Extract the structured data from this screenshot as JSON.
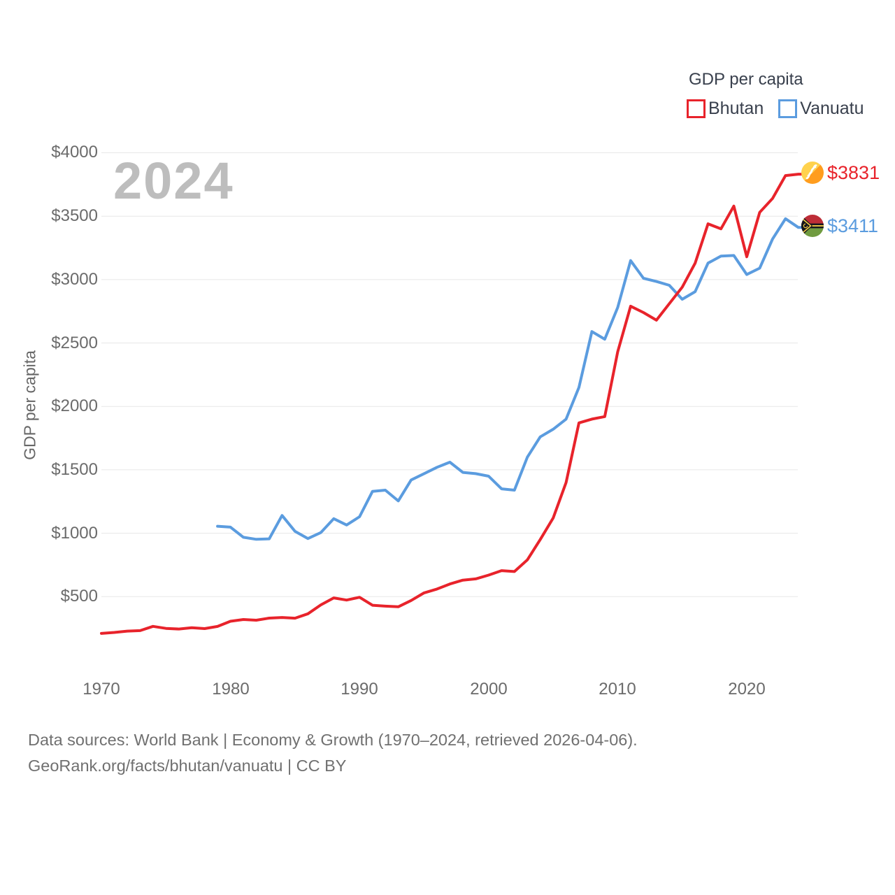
{
  "watermark": {
    "text": "2024"
  },
  "legend": {
    "title": "GDP per capita",
    "items": [
      {
        "label": "Bhutan",
        "color": "#e8232b"
      },
      {
        "label": "Vanuatu",
        "color": "#5b9cdf"
      }
    ]
  },
  "axes": {
    "y_title": "GDP per capita",
    "y_ticks": [
      {
        "value": 500,
        "label": "$500"
      },
      {
        "value": 1000,
        "label": "$1000"
      },
      {
        "value": 1500,
        "label": "$1500"
      },
      {
        "value": 2000,
        "label": "$2000"
      },
      {
        "value": 2500,
        "label": "$2500"
      },
      {
        "value": 3000,
        "label": "$3000"
      },
      {
        "value": 3500,
        "label": "$3500"
      },
      {
        "value": 4000,
        "label": "$4000"
      }
    ],
    "x_ticks": [
      {
        "value": 1970,
        "label": "1970"
      },
      {
        "value": 1980,
        "label": "1980"
      },
      {
        "value": 1990,
        "label": "1990"
      },
      {
        "value": 2000,
        "label": "2000"
      },
      {
        "value": 2010,
        "label": "2010"
      },
      {
        "value": 2020,
        "label": "2020"
      }
    ]
  },
  "end_labels": [
    {
      "series": "Bhutan",
      "label": "$3831",
      "icon": "bhutan-flag-icon",
      "color": "#e8232b"
    },
    {
      "series": "Vanuatu",
      "label": "$3411",
      "icon": "vanuatu-flag-icon",
      "color": "#5b9cdf"
    }
  ],
  "footer": {
    "line1": "Data sources: World Bank | Economy & Growth (1970–2024, retrieved 2026-04-06).",
    "line2": "GeoRank.org/facts/bhutan/vanuatu | CC BY"
  },
  "chart_data": {
    "type": "line",
    "title": "GDP per capita",
    "ylabel": "GDP per capita",
    "xlabel": "",
    "ylim": [
      0,
      4000
    ],
    "xlim": [
      1970,
      2024
    ],
    "grid": "horizontal",
    "grid_color": "#e7e7e7",
    "legend_position": "top-right",
    "series": [
      {
        "name": "Bhutan",
        "color": "#e8232b",
        "start_year": 1970,
        "end_value_label": "$3831",
        "values": [
          210,
          218,
          228,
          232,
          266,
          250,
          245,
          255,
          248,
          265,
          306,
          320,
          314,
          331,
          336,
          330,
          365,
          435,
          490,
          473,
          495,
          432,
          425,
          420,
          470,
          530,
          560,
          600,
          630,
          640,
          670,
          705,
          698,
          790,
          950,
          1120,
          1400,
          1870,
          1900,
          1920,
          2430,
          2790,
          2740,
          2680,
          2810,
          2940,
          3130,
          3440,
          3400,
          3580,
          3180,
          3530,
          3640,
          3820,
          3831
        ]
      },
      {
        "name": "Vanuatu",
        "color": "#5b9cdf",
        "start_year": 1979,
        "end_value_label": "$3411",
        "values": [
          1055,
          1048,
          968,
          952,
          956,
          1140,
          1015,
          958,
          1005,
          1115,
          1065,
          1130,
          1330,
          1340,
          1255,
          1420,
          1470,
          1520,
          1560,
          1480,
          1470,
          1450,
          1350,
          1340,
          1600,
          1760,
          1820,
          1900,
          2150,
          2590,
          2530,
          2780,
          3150,
          3010,
          2985,
          2955,
          2845,
          2905,
          3130,
          3185,
          3190,
          3040,
          3090,
          3320,
          3480,
          3411
        ]
      }
    ]
  }
}
